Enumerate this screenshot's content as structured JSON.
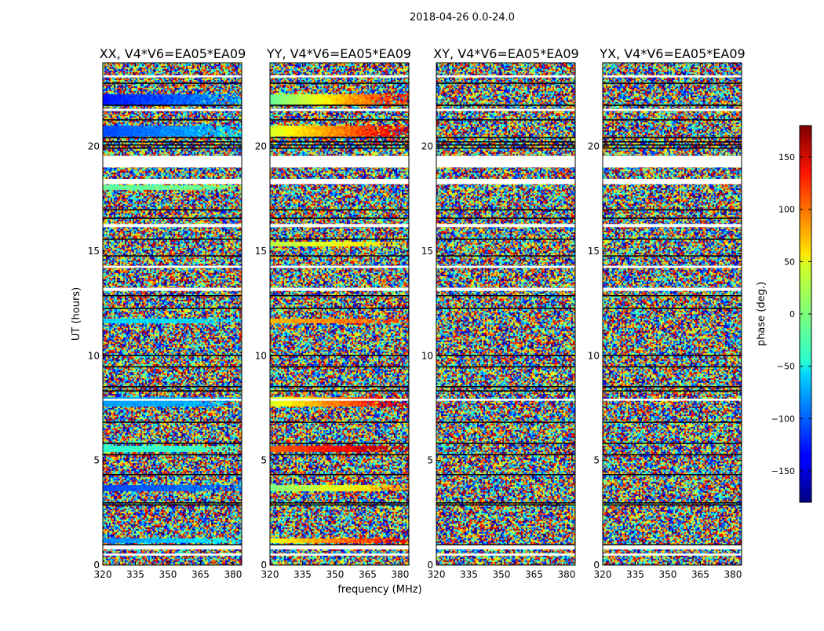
{
  "chart_data": {
    "type": "heatmap",
    "title": "2018-04-26 0.0-24.0",
    "xlabel": "frequency (MHz)",
    "ylabel": "UT (hours)",
    "xlim": [
      320,
      384
    ],
    "ylim": [
      0,
      24
    ],
    "xticks": [
      320,
      335,
      350,
      365,
      380
    ],
    "yticks": [
      0,
      5,
      10,
      15,
      20
    ],
    "panels": [
      {
        "name": "XX",
        "title": "XX, V4*V6=EA05*EA09",
        "coherent_bands": [
          {
            "t0": 1.1,
            "t1": 1.35,
            "phase_start": -90,
            "phase_end": -40
          },
          {
            "t0": 3.55,
            "t1": 3.85,
            "phase_start": -110,
            "phase_end": -90
          },
          {
            "t0": 5.4,
            "t1": 5.75,
            "phase_start": -30,
            "phase_end": -20
          },
          {
            "t0": 7.6,
            "t1": 8.05,
            "phase_start": -80,
            "phase_end": -70
          },
          {
            "t0": 11.55,
            "t1": 11.8,
            "phase_start": -60,
            "phase_end": -55
          },
          {
            "t0": 17.95,
            "t1": 18.15,
            "phase_start": -10,
            "phase_end": -5
          },
          {
            "t0": 20.5,
            "t1": 21.05,
            "phase_start": -110,
            "phase_end": -60
          },
          {
            "t0": 22.05,
            "t1": 22.5,
            "phase_start": -130,
            "phase_end": -80
          }
        ]
      },
      {
        "name": "YY",
        "title": "YY, V4*V6=EA05*EA09",
        "coherent_bands": [
          {
            "t0": 1.05,
            "t1": 1.35,
            "phase_start": 40,
            "phase_end": 150
          },
          {
            "t0": 3.55,
            "t1": 3.85,
            "phase_start": 0,
            "phase_end": 80
          },
          {
            "t0": 5.4,
            "t1": 5.75,
            "phase_start": 100,
            "phase_end": 170
          },
          {
            "t0": 7.6,
            "t1": 8.05,
            "phase_start": 30,
            "phase_end": 160
          },
          {
            "t0": 11.55,
            "t1": 11.8,
            "phase_start": 70,
            "phase_end": 110
          },
          {
            "t0": 15.3,
            "t1": 15.5,
            "phase_start": 20,
            "phase_end": 60
          },
          {
            "t0": 20.5,
            "t1": 21.05,
            "phase_start": 30,
            "phase_end": 150
          },
          {
            "t0": 22.05,
            "t1": 22.5,
            "phase_start": -10,
            "phase_end": 140
          }
        ]
      },
      {
        "name": "XY",
        "title": "XY, V4*V6=EA05*EA09",
        "coherent_bands": []
      },
      {
        "name": "YX",
        "title": "YX, V4*V6=EA05*EA09",
        "coherent_bands": []
      }
    ],
    "flagged_gaps": [
      {
        "t0": 0.75,
        "t1": 0.95,
        "color": "white"
      },
      {
        "t0": 0.95,
        "t1": 1.0,
        "color": "black"
      },
      {
        "t0": 0.45,
        "t1": 0.55,
        "color": "white"
      },
      {
        "t0": 7.85,
        "t1": 7.95,
        "color": "white"
      },
      {
        "t0": 13.1,
        "t1": 13.25,
        "color": "white"
      },
      {
        "t0": 14.2,
        "t1": 14.3,
        "color": "white"
      },
      {
        "t0": 16.15,
        "t1": 16.3,
        "color": "white"
      },
      {
        "t0": 18.2,
        "t1": 18.45,
        "color": "white"
      },
      {
        "t0": 19.0,
        "t1": 19.55,
        "color": "white"
      },
      {
        "t0": 21.7,
        "t1": 21.8,
        "color": "white"
      },
      {
        "t0": 23.3,
        "t1": 23.4,
        "color": "white"
      }
    ],
    "black_lines": [
      2.9,
      3.0,
      4.35,
      5.3,
      5.85,
      6.85,
      8.35,
      8.55,
      9.5,
      10.05,
      12.3,
      12.9,
      14.8,
      15.6,
      16.6,
      17.0,
      19.95,
      20.1,
      20.25,
      20.45,
      21.3,
      22.0,
      23.05
    ],
    "colorbar": {
      "label": "phase (deg.)",
      "range": [
        -180,
        180
      ],
      "ticks": [
        -150,
        -100,
        -50,
        0,
        50,
        100,
        150
      ],
      "tick_labels": [
        "−150",
        "−100",
        "−50",
        "0",
        "50",
        "100",
        "150"
      ],
      "colormap": "jet"
    }
  }
}
